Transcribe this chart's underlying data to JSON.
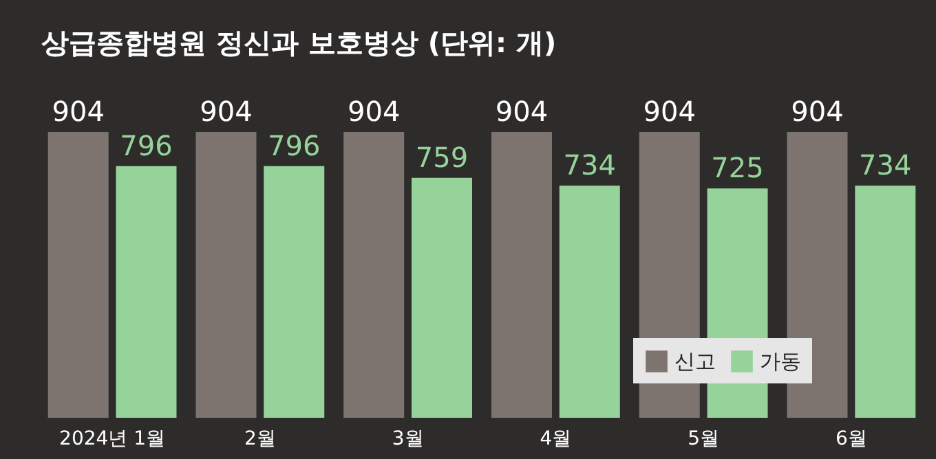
{
  "chart_data": {
    "type": "bar",
    "title": "상급종합병원 정신과 보호병상 (단위: 개)",
    "categories": [
      "2024년 1월",
      "2월",
      "3월",
      "4월",
      "5월",
      "6월"
    ],
    "series": [
      {
        "name": "신고",
        "color": "#7d7470",
        "values": [
          904,
          904,
          904,
          904,
          904,
          904
        ]
      },
      {
        "name": "가동",
        "color": "#96d39a",
        "values": [
          796,
          796,
          759,
          734,
          725,
          734
        ]
      }
    ],
    "data_labels": true,
    "legend": "right"
  }
}
